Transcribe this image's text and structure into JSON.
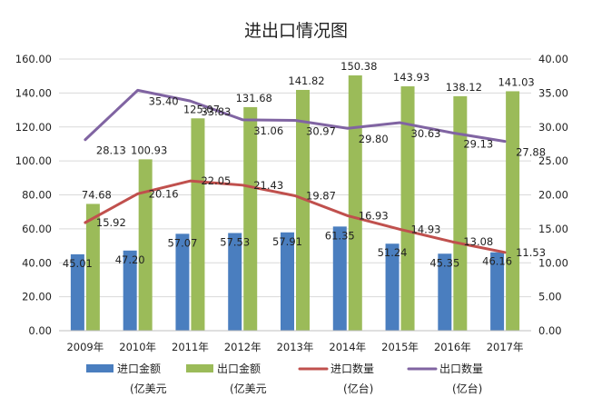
{
  "chart_data": {
    "type": "bar",
    "title": "进出口情况图",
    "categories": [
      "2009年",
      "2010年",
      "2011年",
      "2012年",
      "2013年",
      "2014年",
      "2015年",
      "2016年",
      "2017年"
    ],
    "y_left": {
      "min": 0,
      "max": 160,
      "step": 20,
      "tick_labels": [
        "0.00",
        "20.00",
        "40.00",
        "60.00",
        "80.00",
        "100.00",
        "120.00",
        "140.00",
        "160.00"
      ]
    },
    "y_right": {
      "min": 0,
      "max": 40,
      "step": 5,
      "tick_labels": [
        "0.00",
        "5.00",
        "10.00",
        "15.00",
        "20.00",
        "25.00",
        "30.00",
        "35.00",
        "40.00"
      ]
    },
    "series": [
      {
        "name": "进口金额",
        "unit": "(亿美元",
        "type": "bar",
        "axis": "left",
        "color": "#4a7ebf",
        "values": [
          45.01,
          47.2,
          57.07,
          57.53,
          57.91,
          61.35,
          51.24,
          45.35,
          46.16
        ],
        "labels": [
          "45.01",
          "47.20",
          "57.07",
          "57.53",
          "57.91",
          "61.35",
          "51.24",
          "45.35",
          "46.16"
        ]
      },
      {
        "name": "出口金额",
        "unit": "(亿美元",
        "type": "bar",
        "axis": "left",
        "color": "#9bbb59",
        "values": [
          74.68,
          100.93,
          125.07,
          131.68,
          141.82,
          150.38,
          143.93,
          138.12,
          141.03
        ],
        "labels": [
          "74.68",
          "100.93",
          "125.07",
          "131.68",
          "141.82",
          "150.38",
          "143.93",
          "138.12",
          "141.03"
        ]
      },
      {
        "name": "进口数量",
        "unit": "(亿台)",
        "type": "line",
        "axis": "right",
        "color": "#c0504d",
        "values": [
          15.92,
          20.16,
          22.05,
          21.43,
          19.87,
          16.93,
          14.93,
          13.08,
          11.53
        ],
        "labels": [
          "15.92",
          "20.16",
          "22.05",
          "21.43",
          "19.87",
          "16.93",
          "14.93",
          "13.08",
          "11.53"
        ]
      },
      {
        "name": "出口数量",
        "unit": "(亿台)",
        "type": "line",
        "axis": "right",
        "color": "#8064a2",
        "values": [
          28.13,
          35.4,
          33.83,
          31.06,
          30.97,
          29.8,
          30.63,
          29.13,
          27.88
        ],
        "labels": [
          "28.13",
          "35.40",
          "33.83",
          "31.06",
          "30.97",
          "29.80",
          "30.63",
          "29.13",
          "27.88"
        ]
      }
    ],
    "grid": true,
    "legend_position": "bottom"
  }
}
